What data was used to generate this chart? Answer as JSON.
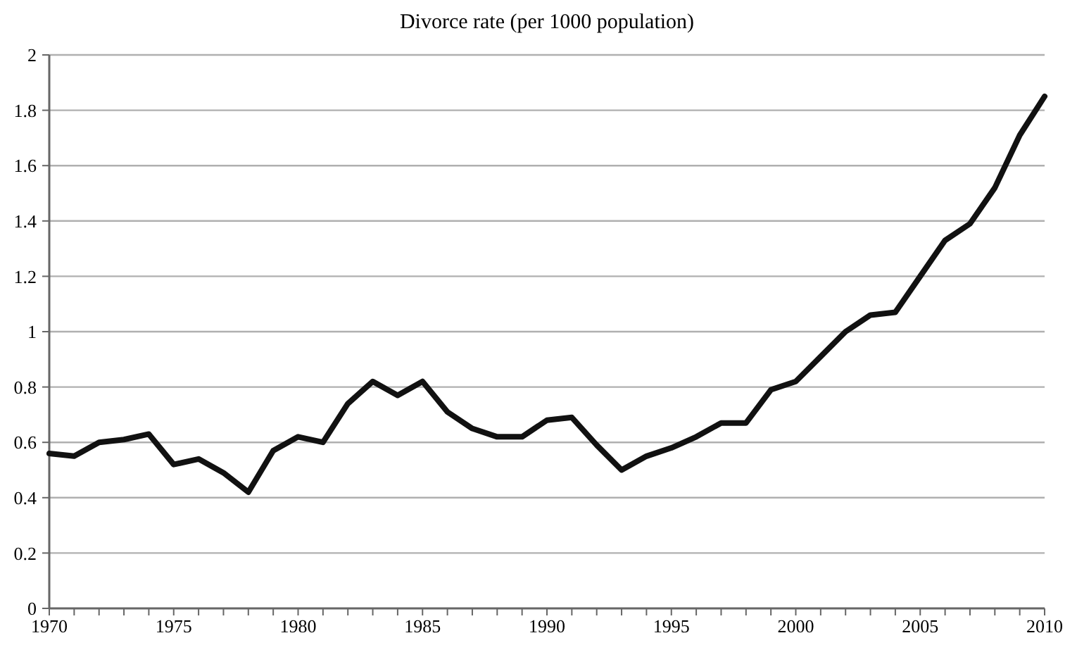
{
  "chart_data": {
    "type": "line",
    "title": "Divorce rate (per 1000 population)",
    "x": [
      1970,
      1971,
      1972,
      1973,
      1974,
      1975,
      1976,
      1977,
      1978,
      1979,
      1980,
      1981,
      1982,
      1983,
      1984,
      1985,
      1986,
      1987,
      1988,
      1989,
      1990,
      1991,
      1992,
      1993,
      1994,
      1995,
      1996,
      1997,
      1998,
      1999,
      2000,
      2001,
      2002,
      2003,
      2004,
      2005,
      2006,
      2007,
      2008,
      2009,
      2010
    ],
    "series": [
      {
        "color": "#111111",
        "values": [
          0.56,
          0.55,
          0.6,
          0.61,
          0.63,
          0.52,
          0.54,
          0.49,
          0.42,
          0.57,
          0.62,
          0.6,
          0.74,
          0.82,
          0.77,
          0.82,
          0.71,
          0.65,
          0.62,
          0.62,
          0.68,
          0.69,
          0.59,
          0.5,
          0.55,
          0.58,
          0.62,
          0.67,
          0.67,
          0.79,
          0.82,
          0.91,
          1.0,
          1.06,
          1.07,
          1.2,
          1.33,
          1.39,
          1.52,
          1.71,
          1.85
        ]
      }
    ],
    "xlim": [
      1970,
      2010
    ],
    "xticks": [
      1970,
      {
        "value": 1971,
        "label": null
      },
      {
        "value": 1972,
        "label": null
      },
      {
        "value": 1973,
        "label": null
      },
      {
        "value": 1974,
        "label": null
      },
      1975,
      {
        "value": 1976,
        "label": null
      },
      {
        "value": 1977,
        "label": null
      },
      {
        "value": 1978,
        "label": null
      },
      {
        "value": 1979,
        "label": null
      },
      1980,
      {
        "value": 1981,
        "label": null
      },
      {
        "value": 1982,
        "label": null
      },
      {
        "value": 1983,
        "label": null
      },
      {
        "value": 1984,
        "label": null
      },
      1985,
      {
        "value": 1986,
        "label": null
      },
      {
        "value": 1987,
        "label": null
      },
      {
        "value": 1988,
        "label": null
      },
      {
        "value": 1989,
        "label": null
      },
      1990,
      {
        "value": 1991,
        "label": null
      },
      {
        "value": 1992,
        "label": null
      },
      {
        "value": 1993,
        "label": null
      },
      {
        "value": 1994,
        "label": null
      },
      1995,
      {
        "value": 1996,
        "label": null
      },
      {
        "value": 1997,
        "label": null
      },
      {
        "value": 1998,
        "label": null
      },
      {
        "value": 1999,
        "label": null
      },
      2000,
      {
        "value": 2001,
        "label": null
      },
      {
        "value": 2002,
        "label": null
      },
      {
        "value": 2003,
        "label": null
      },
      {
        "value": 2004,
        "label": null
      },
      2005,
      {
        "value": 2006,
        "label": null
      },
      {
        "value": 2007,
        "label": null
      },
      {
        "value": 2008,
        "label": null
      },
      {
        "value": 2009,
        "label": null
      },
      2010
    ],
    "ylim": [
      0,
      2
    ],
    "yticks": [
      0,
      {
        "value": 0.2,
        "label": "0.2"
      },
      {
        "value": 0.4,
        "label": "0.4"
      },
      {
        "value": 0.6,
        "label": "0.6"
      },
      {
        "value": 0.8,
        "label": "0.8"
      },
      1,
      {
        "value": 1.2,
        "label": "1.2"
      },
      {
        "value": 1.4,
        "label": "1.4"
      },
      {
        "value": 1.6,
        "label": "1.6"
      },
      {
        "value": 1.8,
        "label": "1.8"
      },
      2
    ],
    "grid": "y",
    "marker": "none",
    "line_style": "solid"
  }
}
